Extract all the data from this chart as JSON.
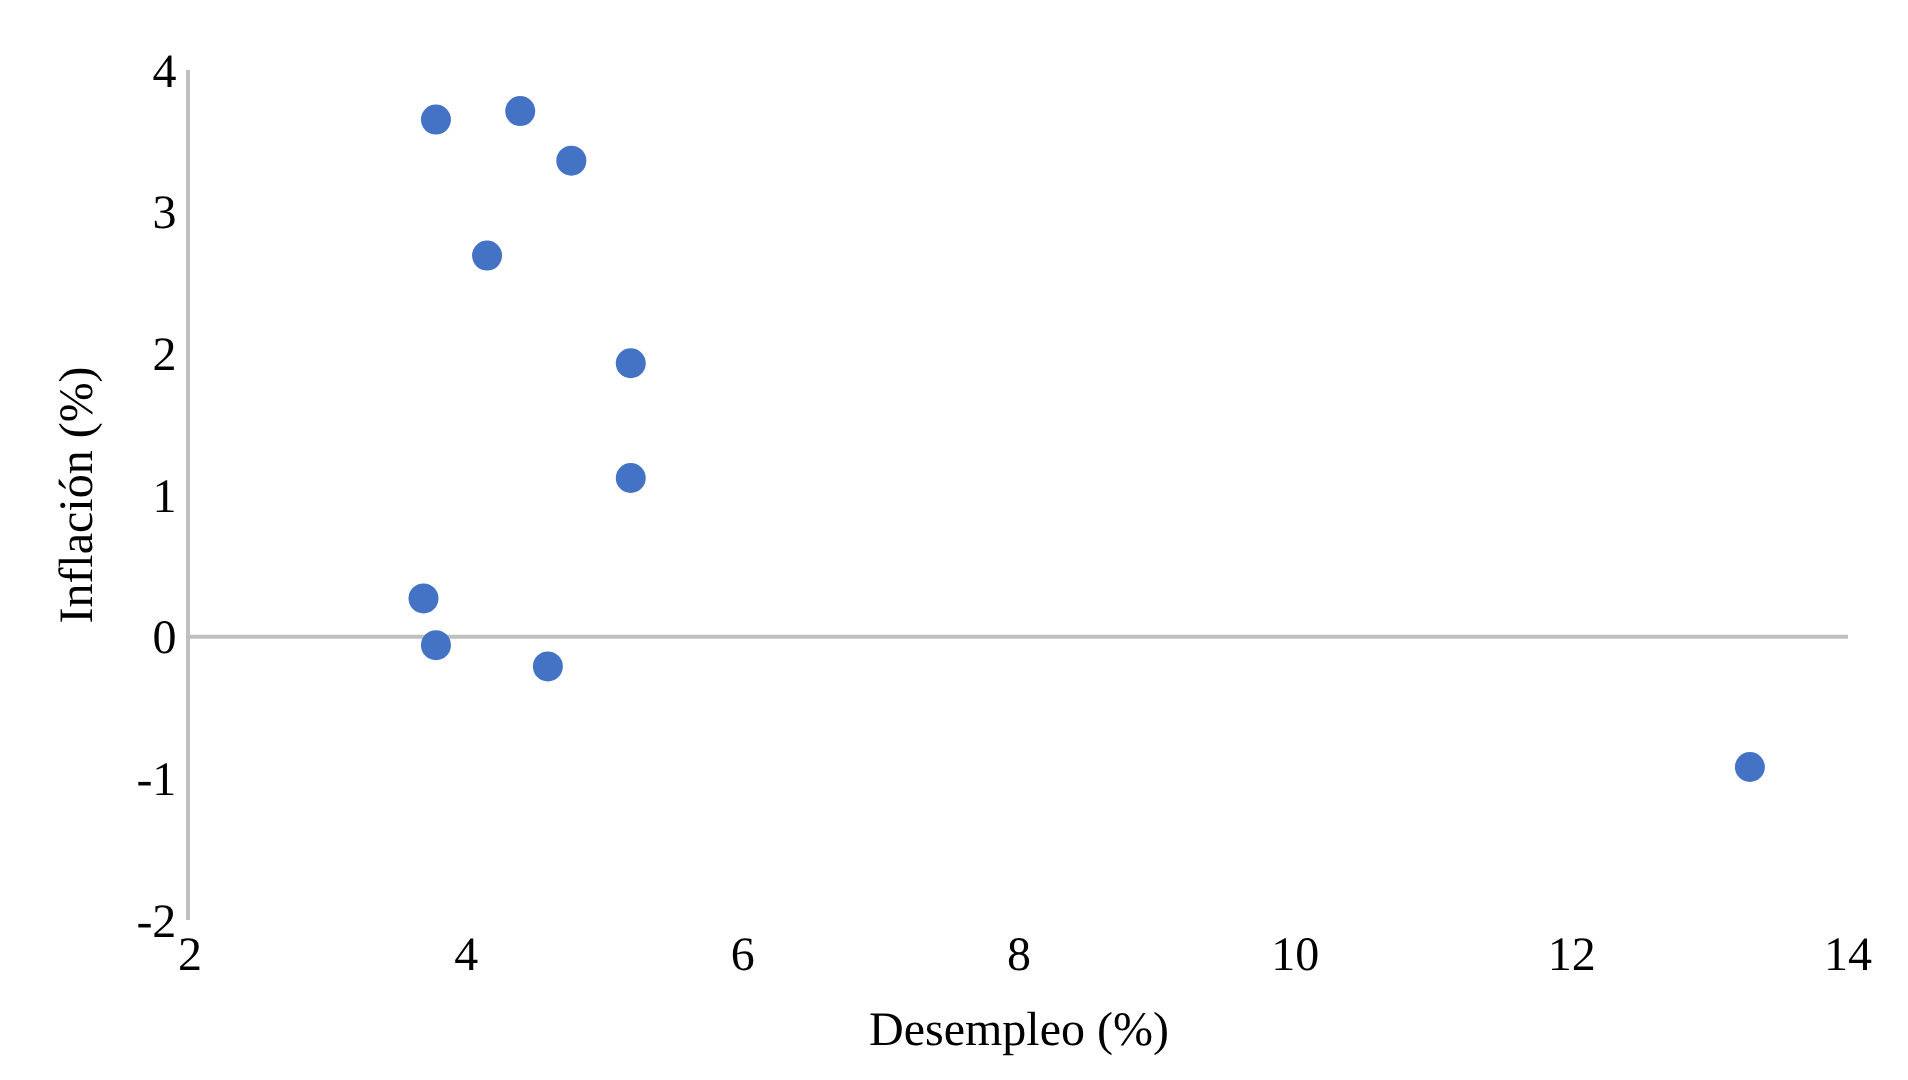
{
  "chart_data": {
    "type": "scatter",
    "xlabel": "Desempleo (%)",
    "ylabel": "Inflación (%)",
    "x": [
      3.78,
      4.39,
      4.76,
      4.15,
      5.19,
      5.19,
      3.69,
      3.78,
      4.59,
      13.29
    ],
    "series": [
      {
        "color": "#4472c4",
        "values": [
          3.65,
          3.71,
          3.36,
          2.69,
          1.93,
          1.12,
          0.27,
          -0.06,
          -0.21,
          -0.92
        ]
      }
    ],
    "xlim": [
      2,
      14
    ],
    "xticks": [
      2,
      4,
      6,
      8,
      10,
      12,
      14
    ],
    "ylim": [
      -2,
      4
    ],
    "yticks": [
      -2,
      -1,
      0,
      1,
      2,
      3,
      4
    ],
    "ref_lines": [
      {
        "axis": "y",
        "value": 0,
        "color": "#bfbfbf",
        "line_style": "solid"
      }
    ],
    "grid": false,
    "marker": "circle"
  }
}
